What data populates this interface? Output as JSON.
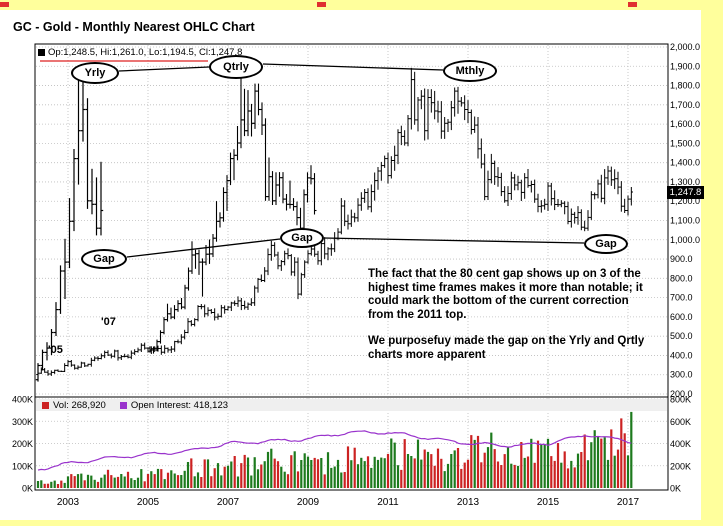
{
  "page": {
    "title": "GC - Gold - Monthly Nearest OHLC Chart"
  },
  "quote_bar": {
    "text": "Op:1,248.5, Hi:1,261.0, Lo:1,194.5, Cl:1,247.8"
  },
  "last_price_label": "1,247.8",
  "legend": {
    "vol": "Vol: 268,920",
    "oi": "Open Interest: 418,123"
  },
  "annotations": {
    "yrly": "Yrly",
    "qtrly": "Qtrly",
    "mthly": "Mthly",
    "gap_left": "Gap",
    "gap_mid": "Gap",
    "gap_right": "Gap",
    "year_05": "'05",
    "year_07": "'07",
    "note_p1": "The fact that the 80 cent gap shows up on 3 of the highest time frames makes it more than notable; it could mark the bottom of the current correction from the 2011 top.",
    "note_p2": "We purposefuy made the gap on the Yrly and Qrtly charts more apparent"
  },
  "chart_data": {
    "type": "ohlc",
    "title": "GC - Gold - Monthly Nearest OHLC Chart",
    "timeframes_spliced": [
      "Yearly",
      "Quarterly",
      "Monthly"
    ],
    "last_close": 1247.8,
    "quote": {
      "open": 1248.5,
      "high": 1261.0,
      "low": 1194.5,
      "close": 1247.8
    },
    "price_axis": {
      "min": 200,
      "max": 2000,
      "step": 100,
      "labels": [
        "2,000.0",
        "1,900.0",
        "1,800.0",
        "1,700.0",
        "1,600.0",
        "1,500.0",
        "1,400.0",
        "1,300.0",
        "1,200.0",
        "1,100.0",
        "1,000.0",
        "900.0",
        "800.0",
        "700.0",
        "600.0",
        "500.0",
        "400.0",
        "300.0",
        "200.0"
      ]
    },
    "x_axis": {
      "start": "2002-01",
      "end": "2017-02",
      "year_labels": [
        "2003",
        "2005",
        "2007",
        "2009",
        "2011",
        "2013",
        "2015",
        "2017"
      ]
    },
    "volume_axis": {
      "left_max_k": 400,
      "right_max_k": 800,
      "left_labels": [
        "400K",
        "300K",
        "200K",
        "100K",
        "0K"
      ],
      "right_labels": [
        "800K",
        "600K",
        "400K",
        "200K",
        "0K"
      ]
    },
    "monthly": {
      "start": "2002-01",
      "closes_by_year": [
        [
          282,
          296,
          301,
          308,
          326,
          313,
          304,
          312,
          323,
          318,
          317,
          348
        ],
        [
          368,
          350,
          334,
          339,
          361,
          346,
          354,
          375,
          386,
          384,
          398,
          416
        ],
        [
          402,
          396,
          423,
          388,
          394,
          395,
          391,
          412,
          420,
          429,
          453,
          438
        ],
        [
          422,
          435,
          428,
          436,
          417,
          437,
          429,
          433,
          472,
          470,
          495,
          519
        ],
        [
          575,
          561,
          586,
          654,
          653,
          616,
          634,
          623,
          599,
          603,
          647,
          638
        ],
        [
          651,
          672,
          669,
          683,
          659,
          651,
          666,
          673,
          750,
          795,
          789,
          838
        ],
        [
          923,
          971,
          921,
          865,
          887,
          928,
          918,
          833,
          884,
          718,
          819,
          884
        ],
        [
          928,
          952,
          925,
          891,
          980,
          927,
          953,
          953,
          1008,
          1040,
          1175,
          1096
        ],
        [
          1083,
          1118,
          1114,
          1180,
          1215,
          1245,
          1171,
          1250,
          1307,
          1357,
          1385,
          1421
        ],
        [
          1333,
          1411,
          1438,
          1556,
          1536,
          1502,
          1628,
          1831,
          1622,
          1725,
          1745,
          1566
        ],
        [
          1738,
          1711,
          1668,
          1664,
          1564,
          1604,
          1610,
          1685,
          1771,
          1719,
          1710,
          1676
        ],
        [
          1660,
          1572,
          1595,
          1472,
          1393,
          1224,
          1312,
          1396,
          1327,
          1323,
          1250,
          1202
        ],
        [
          1240,
          1321,
          1284,
          1296,
          1246,
          1322,
          1281,
          1287,
          1211,
          1173,
          1176,
          1184
        ],
        [
          1279,
          1213,
          1183,
          1182,
          1190,
          1172,
          1095,
          1132,
          1115,
          1141,
          1065,
          1060
        ],
        [
          1116,
          1234,
          1234,
          1290,
          1215,
          1321,
          1357,
          1311,
          1317,
          1273,
          1174,
          1152
        ],
        [
          1211,
          1247.8
        ]
      ]
    },
    "volume_yearly_avg_k": {
      "years": [
        2002,
        2003,
        2004,
        2005,
        2006,
        2007,
        2008,
        2009,
        2010,
        2011,
        2012,
        2013,
        2014,
        2015,
        2016,
        2017
      ],
      "values": [
        35,
        45,
        60,
        70,
        90,
        100,
        120,
        120,
        135,
        150,
        140,
        170,
        150,
        175,
        215,
        265
      ]
    },
    "open_interest_yearly_k": {
      "years": [
        2002,
        2003,
        2004,
        2005,
        2006,
        2007,
        2008,
        2009,
        2010,
        2011,
        2012,
        2013,
        2014,
        2015,
        2016,
        2017
      ],
      "values": [
        150,
        220,
        270,
        300,
        330,
        400,
        420,
        440,
        500,
        500,
        450,
        400,
        380,
        400,
        480,
        418
      ]
    },
    "colors": {
      "bars": "#000000",
      "up_volume": "#1d7a1d",
      "down_volume": "#cc2222",
      "open_interest": "#9933cc",
      "grid": "#bdbdbd",
      "page_border": "#ffff9c",
      "quote_underline": "#dd2222"
    }
  }
}
